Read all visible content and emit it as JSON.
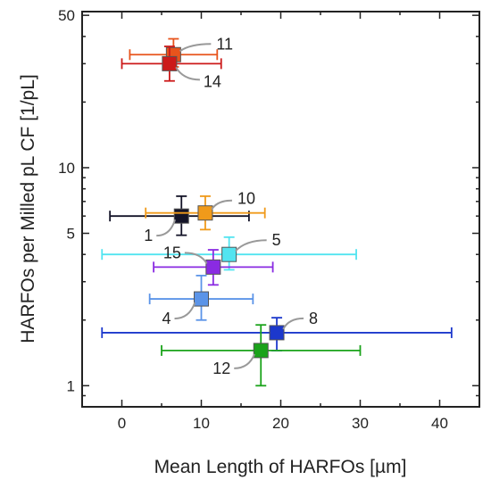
{
  "chart_data": {
    "type": "scatter",
    "xlabel": "Mean Length of HARFOs [µm]",
    "ylabel": "HARFOs per Milled pL CF [1/pL]",
    "xlim": [
      -5,
      45
    ],
    "ylim": [
      0.8,
      52
    ],
    "y_scale": "log",
    "x_ticks": [
      0,
      10,
      20,
      30,
      40
    ],
    "y_ticks": [
      1,
      5,
      10,
      50
    ],
    "grid": false,
    "points": [
      {
        "label": "11",
        "x": 6.5,
        "y": 33,
        "xerr_low": 1,
        "xerr_high": 12,
        "yerr_low": 29,
        "yerr_high": 39,
        "color": "#e8541c"
      },
      {
        "label": "14",
        "x": 6.0,
        "y": 30,
        "xerr_low": 0,
        "xerr_high": 12.5,
        "yerr_low": 25,
        "yerr_high": 36,
        "color": "#cc1a1a"
      },
      {
        "label": "1",
        "x": 7.5,
        "y": 6.0,
        "xerr_low": -1.5,
        "xerr_high": 16,
        "yerr_low": 4.9,
        "yerr_high": 7.4,
        "color": "#141428"
      },
      {
        "label": "10",
        "x": 10.5,
        "y": 6.2,
        "xerr_low": 3,
        "xerr_high": 18,
        "yerr_low": 5.2,
        "yerr_high": 7.4,
        "color": "#f09a1a"
      },
      {
        "label": "5",
        "x": 13.5,
        "y": 4.0,
        "xerr_low": -2.5,
        "xerr_high": 29.5,
        "yerr_low": 3.4,
        "yerr_high": 4.8,
        "color": "#52e4f0"
      },
      {
        "label": "15",
        "x": 11.5,
        "y": 3.5,
        "xerr_low": 4,
        "xerr_high": 19,
        "yerr_low": 2.9,
        "yerr_high": 4.2,
        "color": "#8a2be2"
      },
      {
        "label": "4",
        "x": 10.0,
        "y": 2.5,
        "xerr_low": 3.5,
        "xerr_high": 16.5,
        "yerr_low": 2.0,
        "yerr_high": 3.2,
        "color": "#5b94e8"
      },
      {
        "label": "8",
        "x": 19.5,
        "y": 1.75,
        "xerr_low": -2.5,
        "xerr_high": 41.5,
        "yerr_low": 1.45,
        "yerr_high": 2.05,
        "color": "#1c38cc"
      },
      {
        "label": "12",
        "x": 17.5,
        "y": 1.45,
        "xerr_low": 5,
        "xerr_high": 30,
        "yerr_low": 1.0,
        "yerr_high": 1.9,
        "color": "#1aa31a"
      }
    ]
  }
}
